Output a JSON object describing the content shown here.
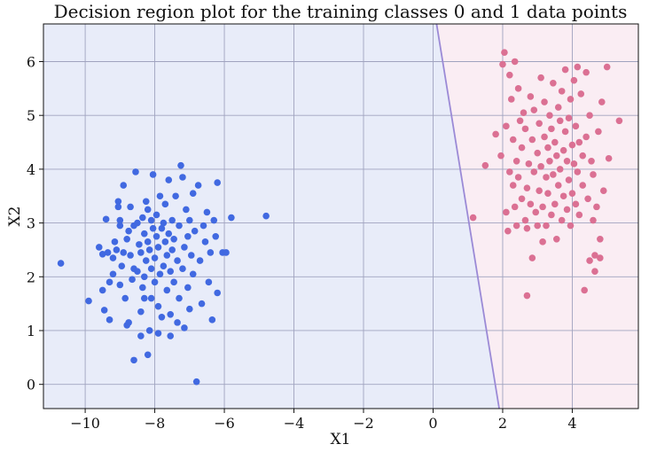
{
  "chart_data": {
    "type": "scatter",
    "title": "Decision region plot for the training classes 0 and 1 data points",
    "xlabel": "X1",
    "ylabel": "X2",
    "xlim": [
      -11.2,
      5.9
    ],
    "ylim": [
      -0.45,
      6.7
    ],
    "x_ticks": [
      -10,
      -8,
      -6,
      -4,
      -2,
      0,
      2,
      4
    ],
    "y_ticks": [
      0,
      1,
      2,
      3,
      4,
      5,
      6
    ],
    "x_tick_labels": [
      "−10",
      "−8",
      "−6",
      "−4",
      "−2",
      "0",
      "2",
      "4"
    ],
    "y_tick_labels": [
      "0",
      "1",
      "2",
      "3",
      "4",
      "5",
      "6"
    ],
    "grid": true,
    "boundary": {
      "points": [
        [
          0.1,
          6.7
        ],
        [
          1.9,
          -0.45
        ]
      ]
    },
    "regions": [
      {
        "class": 0,
        "color": "#e8ecf9"
      },
      {
        "class": 1,
        "color": "#faedf3"
      }
    ],
    "colors": {
      "class0": "#4169e1",
      "class1": "#db7093",
      "boundary": "#9b8ad6"
    },
    "series": [
      {
        "class": 0,
        "points": [
          [
            -10.7,
            2.25
          ],
          [
            -9.9,
            1.55
          ],
          [
            -9.6,
            2.55
          ],
          [
            -9.5,
            2.42
          ],
          [
            -9.5,
            1.75
          ],
          [
            -9.45,
            1.38
          ],
          [
            -9.4,
            3.07
          ],
          [
            -9.35,
            2.45
          ],
          [
            -9.3,
            1.9
          ],
          [
            -9.3,
            1.2
          ],
          [
            -9.2,
            2.05
          ],
          [
            -9.2,
            2.35
          ],
          [
            -9.15,
            2.65
          ],
          [
            -9.1,
            2.5
          ],
          [
            -9.05,
            3.4
          ],
          [
            -9.05,
            3.3
          ],
          [
            -9.0,
            2.95
          ],
          [
            -9.0,
            3.05
          ],
          [
            -9.0,
            1.85
          ],
          [
            -8.95,
            2.2
          ],
          [
            -8.9,
            3.7
          ],
          [
            -8.9,
            2.45
          ],
          [
            -8.85,
            1.6
          ],
          [
            -8.8,
            1.1
          ],
          [
            -8.8,
            2.7
          ],
          [
            -8.75,
            2.85
          ],
          [
            -8.7,
            3.3
          ],
          [
            -8.7,
            2.4
          ],
          [
            -8.65,
            1.95
          ],
          [
            -8.6,
            2.95
          ],
          [
            -8.6,
            2.15
          ],
          [
            -8.55,
            3.95
          ],
          [
            -8.5,
            2.1
          ],
          [
            -8.5,
            3.0
          ],
          [
            -8.45,
            2.6
          ],
          [
            -8.4,
            2.45
          ],
          [
            -8.4,
            1.35
          ],
          [
            -8.35,
            3.1
          ],
          [
            -8.35,
            1.8
          ],
          [
            -8.3,
            2.0
          ],
          [
            -8.3,
            2.8
          ],
          [
            -8.25,
            3.4
          ],
          [
            -8.25,
            2.3
          ],
          [
            -8.2,
            3.25
          ],
          [
            -8.2,
            2.65
          ],
          [
            -8.15,
            2.5
          ],
          [
            -8.1,
            1.6
          ],
          [
            -8.1,
            2.15
          ],
          [
            -8.1,
            3.05
          ],
          [
            -8.05,
            2.9
          ],
          [
            -8.05,
            3.9
          ],
          [
            -8.0,
            2.35
          ],
          [
            -8.0,
            1.9
          ],
          [
            -7.95,
            2.75
          ],
          [
            -7.95,
            3.15
          ],
          [
            -7.9,
            1.45
          ],
          [
            -7.9,
            2.55
          ],
          [
            -7.85,
            3.5
          ],
          [
            -7.85,
            2.05
          ],
          [
            -7.8,
            2.9
          ],
          [
            -7.8,
            1.25
          ],
          [
            -7.75,
            2.2
          ],
          [
            -7.75,
            3.0
          ],
          [
            -7.7,
            2.65
          ],
          [
            -7.7,
            3.35
          ],
          [
            -7.65,
            1.75
          ],
          [
            -7.65,
            2.4
          ],
          [
            -7.6,
            2.8
          ],
          [
            -7.6,
            3.8
          ],
          [
            -7.55,
            2.1
          ],
          [
            -7.55,
            1.3
          ],
          [
            -7.5,
            2.5
          ],
          [
            -7.5,
            3.05
          ],
          [
            -7.45,
            1.9
          ],
          [
            -7.45,
            2.7
          ],
          [
            -7.4,
            3.5
          ],
          [
            -7.35,
            2.3
          ],
          [
            -7.3,
            1.6
          ],
          [
            -7.3,
            2.95
          ],
          [
            -7.25,
            4.07
          ],
          [
            -7.2,
            3.85
          ],
          [
            -7.2,
            2.15
          ],
          [
            -7.15,
            2.55
          ],
          [
            -7.1,
            3.25
          ],
          [
            -7.05,
            1.8
          ],
          [
            -7.05,
            2.75
          ],
          [
            -7.0,
            3.05
          ],
          [
            -7.0,
            1.4
          ],
          [
            -6.95,
            2.4
          ],
          [
            -6.9,
            3.55
          ],
          [
            -6.9,
            2.05
          ],
          [
            -6.85,
            2.85
          ],
          [
            -6.8,
            0.05
          ],
          [
            -6.75,
            3.7
          ],
          [
            -6.7,
            2.3
          ],
          [
            -6.65,
            1.5
          ],
          [
            -6.6,
            2.95
          ],
          [
            -6.55,
            2.65
          ],
          [
            -6.5,
            3.2
          ],
          [
            -6.45,
            1.9
          ],
          [
            -6.4,
            2.45
          ],
          [
            -6.35,
            1.2
          ],
          [
            -6.3,
            3.05
          ],
          [
            -6.25,
            2.75
          ],
          [
            -6.2,
            1.7
          ],
          [
            -6.2,
            3.75
          ],
          [
            -6.05,
            2.45
          ],
          [
            -5.95,
            2.45
          ],
          [
            -5.8,
            3.1
          ],
          [
            -4.8,
            3.13
          ],
          [
            -8.6,
            0.45
          ],
          [
            -8.2,
            0.55
          ],
          [
            -8.75,
            1.15
          ],
          [
            -8.4,
            0.9
          ],
          [
            -8.15,
            1.0
          ],
          [
            -7.9,
            0.95
          ],
          [
            -7.55,
            0.9
          ],
          [
            -7.35,
            1.15
          ],
          [
            -7.15,
            1.05
          ],
          [
            -8.3,
            1.6
          ]
        ]
      },
      {
        "class": 1,
        "points": [
          [
            1.15,
            3.1
          ],
          [
            1.5,
            4.07
          ],
          [
            1.8,
            4.65
          ],
          [
            1.95,
            4.25
          ],
          [
            2.0,
            5.95
          ],
          [
            2.05,
            6.17
          ],
          [
            2.1,
            4.8
          ],
          [
            2.1,
            3.2
          ],
          [
            2.15,
            2.85
          ],
          [
            2.2,
            5.75
          ],
          [
            2.2,
            3.95
          ],
          [
            2.25,
            5.3
          ],
          [
            2.3,
            4.55
          ],
          [
            2.3,
            3.7
          ],
          [
            2.35,
            6.0
          ],
          [
            2.35,
            3.3
          ],
          [
            2.4,
            4.15
          ],
          [
            2.4,
            2.95
          ],
          [
            2.45,
            5.5
          ],
          [
            2.45,
            3.85
          ],
          [
            2.5,
            4.9
          ],
          [
            2.55,
            3.45
          ],
          [
            2.55,
            4.4
          ],
          [
            2.6,
            5.05
          ],
          [
            2.65,
            3.05
          ],
          [
            2.65,
            4.75
          ],
          [
            2.7,
            2.9
          ],
          [
            2.7,
            3.65
          ],
          [
            2.75,
            4.1
          ],
          [
            2.8,
            5.35
          ],
          [
            2.8,
            3.35
          ],
          [
            2.85,
            4.55
          ],
          [
            2.85,
            2.35
          ],
          [
            2.9,
            3.95
          ],
          [
            2.9,
            5.1
          ],
          [
            2.95,
            3.2
          ],
          [
            3.0,
            4.3
          ],
          [
            3.0,
            2.95
          ],
          [
            3.05,
            4.85
          ],
          [
            3.05,
            3.6
          ],
          [
            3.1,
            5.7
          ],
          [
            3.1,
            4.05
          ],
          [
            3.15,
            3.3
          ],
          [
            3.2,
            4.6
          ],
          [
            3.2,
            5.25
          ],
          [
            3.25,
            3.85
          ],
          [
            3.25,
            2.95
          ],
          [
            3.3,
            4.4
          ],
          [
            3.3,
            3.55
          ],
          [
            3.35,
            5.0
          ],
          [
            3.35,
            4.15
          ],
          [
            3.4,
            3.15
          ],
          [
            3.4,
            4.75
          ],
          [
            3.45,
            5.6
          ],
          [
            3.45,
            3.9
          ],
          [
            3.5,
            4.5
          ],
          [
            3.5,
            3.35
          ],
          [
            3.55,
            2.7
          ],
          [
            3.55,
            4.25
          ],
          [
            3.6,
            5.15
          ],
          [
            3.6,
            3.7
          ],
          [
            3.65,
            4.9
          ],
          [
            3.65,
            4.0
          ],
          [
            3.7,
            3.05
          ],
          [
            3.7,
            5.45
          ],
          [
            3.75,
            4.35
          ],
          [
            3.75,
            3.5
          ],
          [
            3.8,
            4.7
          ],
          [
            3.8,
            5.85
          ],
          [
            3.85,
            3.25
          ],
          [
            3.85,
            4.15
          ],
          [
            3.9,
            4.95
          ],
          [
            3.9,
            3.8
          ],
          [
            3.95,
            5.3
          ],
          [
            3.95,
            2.95
          ],
          [
            4.0,
            4.45
          ],
          [
            4.0,
            3.55
          ],
          [
            4.05,
            5.65
          ],
          [
            4.05,
            4.1
          ],
          [
            4.1,
            3.35
          ],
          [
            4.1,
            4.8
          ],
          [
            4.15,
            5.9
          ],
          [
            4.15,
            3.95
          ],
          [
            4.2,
            4.5
          ],
          [
            4.2,
            3.15
          ],
          [
            4.25,
            5.4
          ],
          [
            4.3,
            4.25
          ],
          [
            4.3,
            3.7
          ],
          [
            4.35,
            1.75
          ],
          [
            4.4,
            5.8
          ],
          [
            4.4,
            4.6
          ],
          [
            4.45,
            3.45
          ],
          [
            4.5,
            2.3
          ],
          [
            4.5,
            5.0
          ],
          [
            4.55,
            4.15
          ],
          [
            4.6,
            3.9
          ],
          [
            4.65,
            2.4
          ],
          [
            4.7,
            3.3
          ],
          [
            4.75,
            4.7
          ],
          [
            4.8,
            2.7
          ],
          [
            4.85,
            5.25
          ],
          [
            4.9,
            3.6
          ],
          [
            5.0,
            5.9
          ],
          [
            5.05,
            4.2
          ],
          [
            5.35,
            4.9
          ],
          [
            2.7,
            1.65
          ],
          [
            4.65,
            2.1
          ],
          [
            4.8,
            2.35
          ],
          [
            4.6,
            3.05
          ],
          [
            3.15,
            2.65
          ]
        ]
      }
    ]
  }
}
